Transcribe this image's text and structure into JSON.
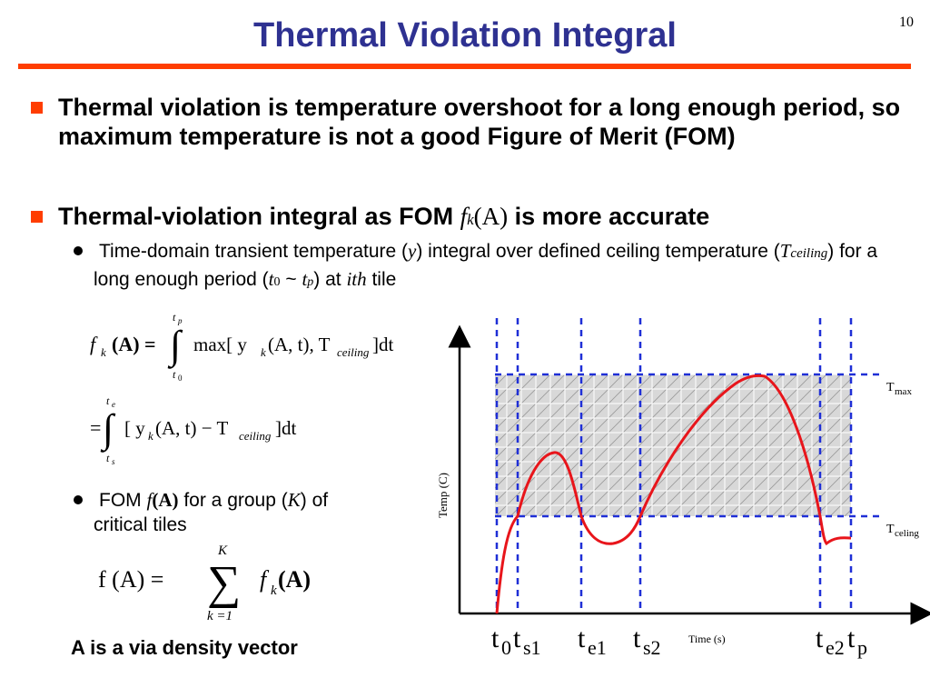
{
  "slide": {
    "page_number": "10",
    "title": "Thermal Violation Integral",
    "bullet1": "Thermal violation is temperature overshoot for a long enough period, so maximum temperature is not a good Figure of Merit (FOM)",
    "bullet2_prefix": "Thermal-violation integral as FOM ",
    "bullet2_f": "f",
    "bullet2_k": "k",
    "bullet2_A": "(A)",
    "bullet2_suffix": " is more accurate",
    "sub1_a": "Time-domain transient temperature (",
    "sub1_y": "y",
    "sub1_b": ") integral over defined ceiling temperature (",
    "sub1_T": "T",
    "sub1_ceiling": "ceiling",
    "sub1_c": ") for a long enough period (",
    "sub1_t0": "t",
    "sub1_0": "0",
    "sub1_tilde": " ~ ",
    "sub1_tp": "t",
    "sub1_p": "p",
    "sub1_d": ") at ",
    "sub1_ith": "ith",
    "sub1_e": " tile",
    "fom_a": "FOM ",
    "fom_f": "f",
    "fom_A": "(A)",
    "fom_b": "  for a group (",
    "fom_K": "K",
    "fom_c": ") of",
    "fom_line2": "critical tiles",
    "avec": "A is a via density vector"
  },
  "equations": {
    "eq1": {
      "lhs": "f",
      "lhs_sub": "k",
      "lhs_arg": "(A) =",
      "int_upper": "t",
      "int_upper_sub": "p",
      "int_lower": "t",
      "int_lower_sub": "0",
      "body": "max[ y",
      "body_sub": "k",
      "body2": " (A, t), T",
      "body_sub2": "ceiling",
      "body3": " ]dt"
    },
    "eq2": {
      "lhs": "=",
      "int_upper": "t",
      "int_upper_sub": "e",
      "int_lower": "t",
      "int_lower_sub": "s",
      "body": "[ y",
      "body_sub": "k",
      "body2": " (A, t) − T",
      "body_sub2": "ceiling",
      "body3": " ]dt"
    },
    "eq3": {
      "lhs": "f (A) =",
      "sum_upper": "K",
      "sum_lower": "k =1",
      "rhs": "f",
      "rhs_sub": "k",
      "rhs_arg": " (A)"
    }
  },
  "chart_data": {
    "type": "line",
    "title": "",
    "ylabel": "Temp (C)",
    "xlabel": "Time (s)",
    "levels": {
      "Tmax": "T",
      "Tmax_sub": "max",
      "Tceiling": "T",
      "Tceiling_sub": "celing"
    },
    "time_markers": [
      {
        "label": "t",
        "sub": "0"
      },
      {
        "label": "t",
        "sub": "s1"
      },
      {
        "label": "t",
        "sub": "e1"
      },
      {
        "label": "t",
        "sub": "s2"
      },
      {
        "label": "t",
        "sub": "e2"
      },
      {
        "label": "t",
        "sub": "p"
      }
    ],
    "curve_color": "#e8151b",
    "marker_color": "#1f2fd6"
  }
}
